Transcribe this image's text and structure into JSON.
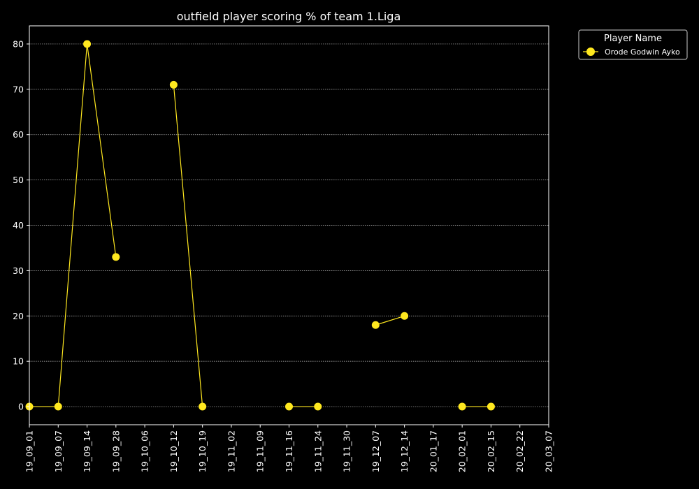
{
  "chart_data": {
    "type": "line",
    "title": "outfield player scoring % of team 1.Liga",
    "xlabel": "",
    "ylabel": "",
    "x": [
      "19_09_01",
      "19_09_07",
      "19_09_14",
      "19_09_28",
      "19_10_06",
      "19_10_12",
      "19_10_19",
      "19_11_02",
      "19_11_09",
      "19_11_16",
      "19_11_24",
      "19_11_30",
      "19_12_07",
      "19_12_14",
      "20_01_17",
      "20_02_01",
      "20_02_15",
      "20_02_22",
      "20_03_07"
    ],
    "yticks": [
      0,
      10,
      20,
      30,
      40,
      50,
      60,
      70,
      80
    ],
    "ylim": [
      -4,
      84
    ],
    "grid": true,
    "legend": {
      "title": "Player Name",
      "position": "outside-top-right"
    },
    "series": [
      {
        "name": "Orode Godwin Ayko",
        "color": "#FFE81F",
        "values": [
          0,
          0,
          80,
          33,
          null,
          71,
          0,
          null,
          null,
          0,
          0,
          null,
          18,
          20,
          null,
          0,
          0,
          null,
          null
        ]
      }
    ]
  },
  "colors": {
    "background": "#000000",
    "axes": "#ffffff",
    "grid": "#bbbbbb"
  }
}
